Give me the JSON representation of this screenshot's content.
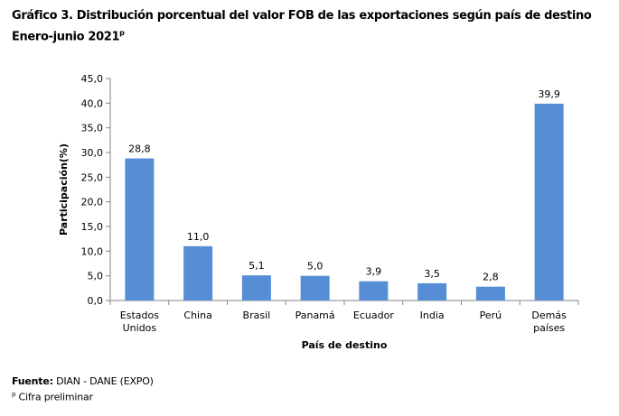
{
  "title_line1": "Gráfico 3. Distribución porcentual del valor FOB de las exportaciones según país de destino",
  "title_line2": "Enero-junio 2021",
  "title_superscript": "p",
  "source_label": "Fuente:",
  "source_text": " DIAN - DANE (EXPO)",
  "footnote_marker": "p",
  "footnote_text": " Cifra preliminar",
  "chart_data": {
    "type": "bar",
    "xlabel": "País de destino",
    "ylabel": "Participación(%)",
    "ylim": [
      0,
      45
    ],
    "yticks": [
      "0,0",
      "5,0",
      "10,0",
      "15,0",
      "20,0",
      "25,0",
      "30,0",
      "35,0",
      "40,0",
      "45,0"
    ],
    "categories": [
      [
        "Estados",
        "Unidos"
      ],
      [
        "China"
      ],
      [
        "Brasil"
      ],
      [
        "Panamá"
      ],
      [
        "Ecuador"
      ],
      [
        "India"
      ],
      [
        "Perú"
      ],
      [
        "Demás",
        "países"
      ]
    ],
    "values": [
      28.8,
      11.0,
      5.1,
      5.0,
      3.9,
      3.5,
      2.8,
      39.9
    ],
    "data_labels": [
      "28,8",
      "11,0",
      "5,1",
      "5,0",
      "3,9",
      "3,5",
      "2,8",
      "39,9"
    ],
    "bar_color": "#558ed5",
    "grid": false,
    "legend": "none"
  }
}
